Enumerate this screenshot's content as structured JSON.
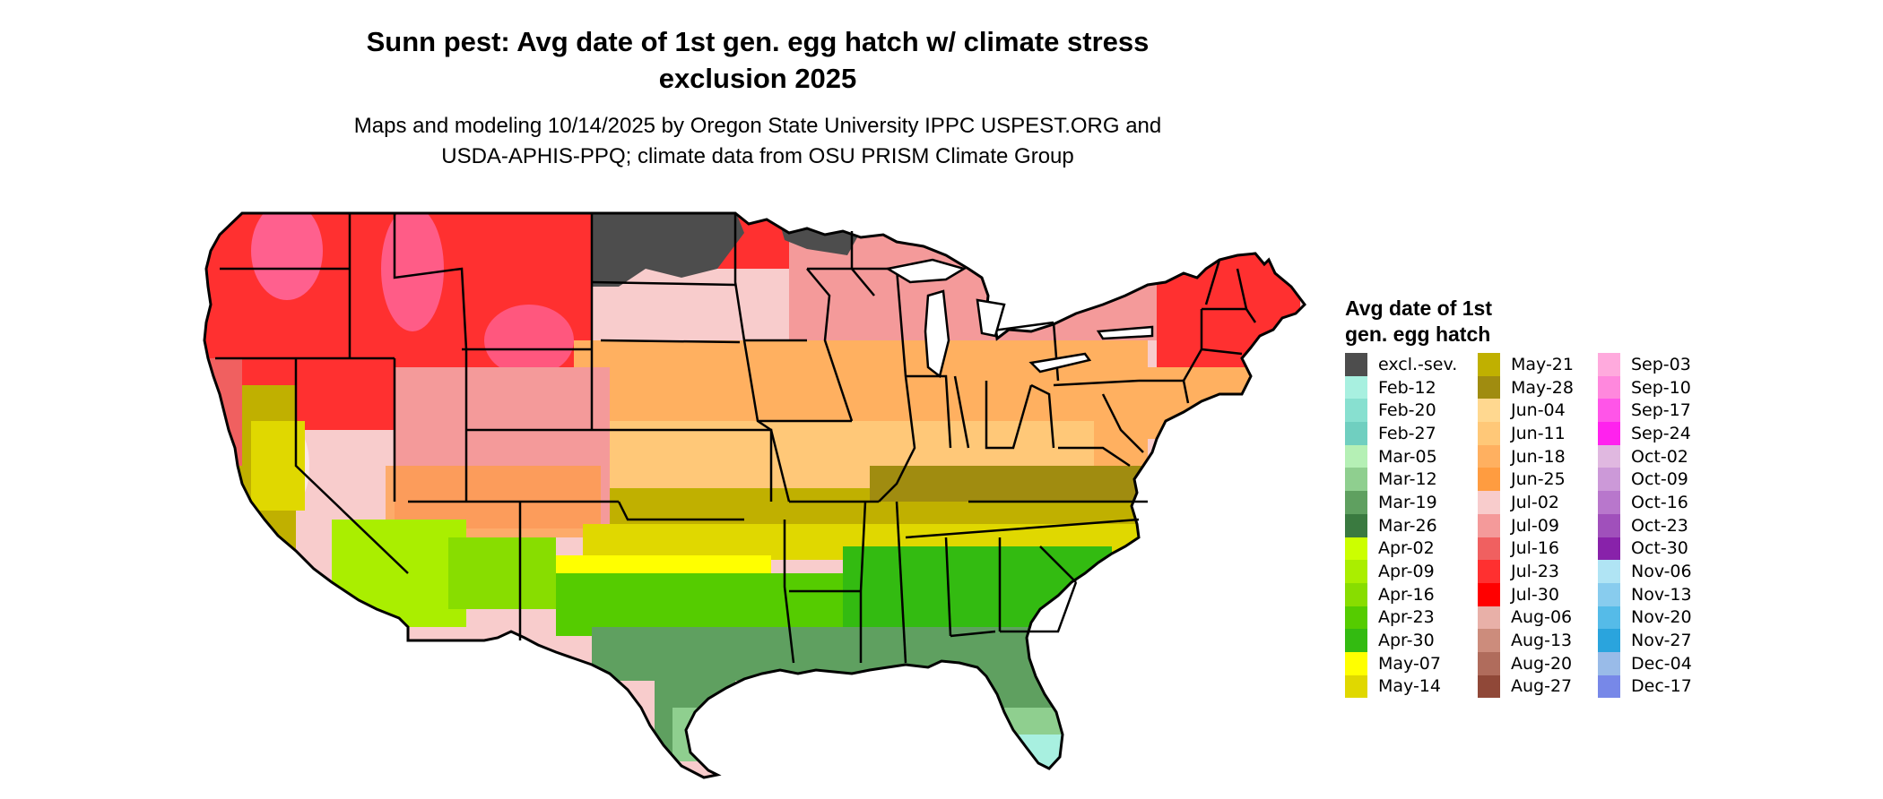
{
  "title_line1": "Sunn pest: Avg date of 1st gen. egg hatch w/ climate stress",
  "title_line2": "exclusion 2025",
  "subtitle_line1": "Maps and modeling 10/14/2025 by Oregon State University IPPC USPEST.ORG and",
  "subtitle_line2": "USDA-APHIS-PPQ; climate data from OSU PRISM Climate Group",
  "map": {
    "region": "Contiguous United States",
    "projection": "lat-lon",
    "lon_range": [
      -125,
      -66.5
    ],
    "lat_range": [
      24.5,
      49.5
    ]
  },
  "legend": {
    "title_line1": "Avg date of 1st",
    "title_line2": "gen. egg hatch",
    "items": [
      {
        "label": "excl.-sev.",
        "color": "#4d4d4d"
      },
      {
        "label": "Feb-12",
        "color": "#a8f0e0"
      },
      {
        "label": "Feb-20",
        "color": "#88e0d0"
      },
      {
        "label": "Feb-27",
        "color": "#70cfc0"
      },
      {
        "label": "Mar-05",
        "color": "#b5f0b5"
      },
      {
        "label": "Mar-12",
        "color": "#8fcf8f"
      },
      {
        "label": "Mar-19",
        "color": "#5fa060"
      },
      {
        "label": "Mar-26",
        "color": "#3a7a40"
      },
      {
        "label": "Apr-02",
        "color": "#ccff00"
      },
      {
        "label": "Apr-09",
        "color": "#aaee00"
      },
      {
        "label": "Apr-16",
        "color": "#88dd00"
      },
      {
        "label": "Apr-23",
        "color": "#55cc00"
      },
      {
        "label": "Apr-30",
        "color": "#33bb11"
      },
      {
        "label": "May-07",
        "color": "#ffff00"
      },
      {
        "label": "May-14",
        "color": "#e0d800"
      },
      {
        "label": "May-21",
        "color": "#c0b000"
      },
      {
        "label": "May-28",
        "color": "#a08c10"
      },
      {
        "label": "Jun-04",
        "color": "#ffd890"
      },
      {
        "label": "Jun-11",
        "color": "#ffc878"
      },
      {
        "label": "Jun-18",
        "color": "#ffb060"
      },
      {
        "label": "Jun-25",
        "color": "#ff9c40"
      },
      {
        "label": "Jul-02",
        "color": "#f8cccc"
      },
      {
        "label": "Jul-09",
        "color": "#f49a9a"
      },
      {
        "label": "Jul-16",
        "color": "#f06060"
      },
      {
        "label": "Jul-23",
        "color": "#ff3030"
      },
      {
        "label": "Jul-30",
        "color": "#ff0000"
      },
      {
        "label": "Aug-06",
        "color": "#e8b0a8"
      },
      {
        "label": "Aug-13",
        "color": "#cc8c7c"
      },
      {
        "label": "Aug-20",
        "color": "#b06c5c"
      },
      {
        "label": "Aug-27",
        "color": "#904838"
      },
      {
        "label": "Sep-03",
        "color": "#ffaadd"
      },
      {
        "label": "Sep-10",
        "color": "#ff88dd"
      },
      {
        "label": "Sep-17",
        "color": "#ff55e8"
      },
      {
        "label": "Sep-24",
        "color": "#ff22ee"
      },
      {
        "label": "Oct-02",
        "color": "#e0b8e0"
      },
      {
        "label": "Oct-09",
        "color": "#cc99d8"
      },
      {
        "label": "Oct-16",
        "color": "#b877cc"
      },
      {
        "label": "Oct-23",
        "color": "#a050bb"
      },
      {
        "label": "Oct-30",
        "color": "#8822aa"
      },
      {
        "label": "Nov-06",
        "color": "#b0e4f4"
      },
      {
        "label": "Nov-13",
        "color": "#88ccee"
      },
      {
        "label": "Nov-20",
        "color": "#55bbe8"
      },
      {
        "label": "Nov-27",
        "color": "#2aa4dd"
      },
      {
        "label": "Dec-04",
        "color": "#99bbe8"
      },
      {
        "label": "Dec-17",
        "color": "#7788e8"
      }
    ]
  }
}
